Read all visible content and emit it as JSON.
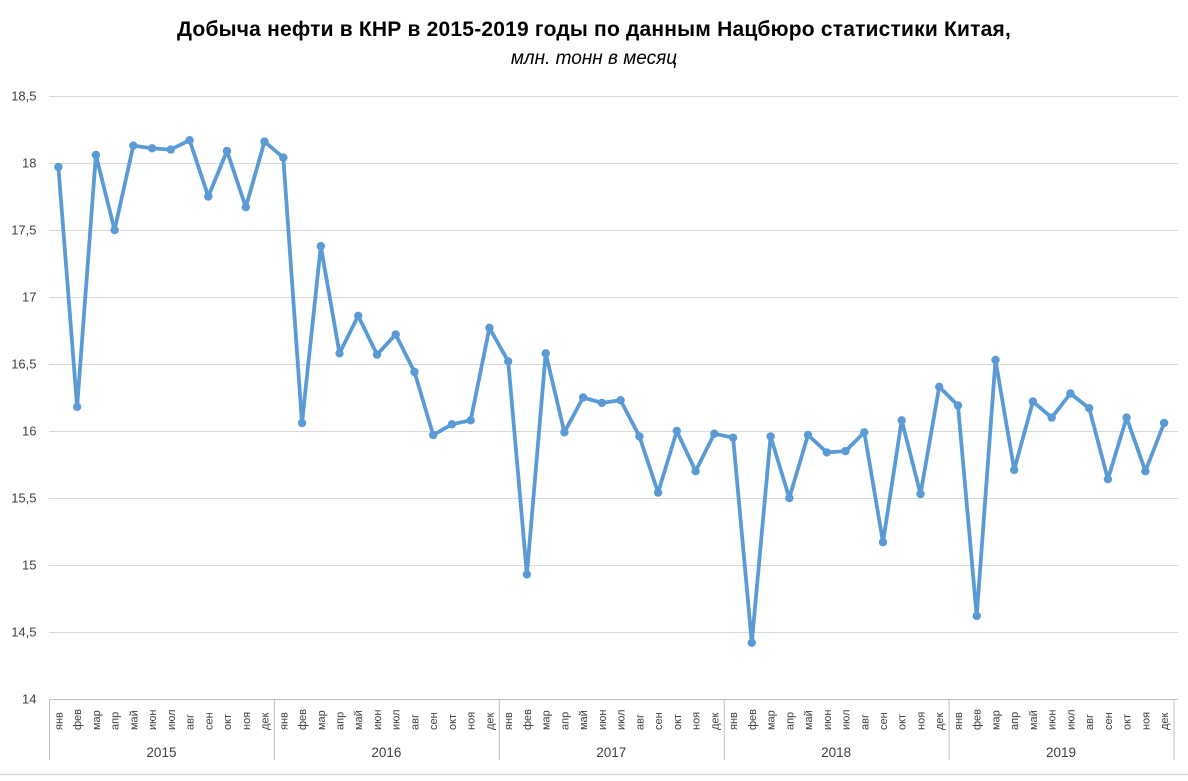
{
  "title": {
    "line1": "Добыча нефти в КНР в 2015-2019 годы по данным Нацбюро статистики Китая,",
    "line2": "млн. тонн в месяц"
  },
  "chart_data": {
    "type": "line",
    "title": "Добыча нефти в КНР в 2015-2019 годы по данным Нацбюро статистики Китая,",
    "subtitle": "млн. тонн в месяц",
    "xlabel": "",
    "ylabel": "",
    "ylim": [
      14,
      18.5
    ],
    "ytick_step": 0.5,
    "ytick_labels": [
      "18,5",
      "18",
      "17,5",
      "17",
      "16,5",
      "16",
      "15,5",
      "15",
      "14,5",
      "14"
    ],
    "grid": true,
    "legend": "none",
    "years": [
      "2015",
      "2016",
      "2017",
      "2018",
      "2019"
    ],
    "month_labels": [
      "янв",
      "фев",
      "мар",
      "апр",
      "май",
      "июн",
      "июл",
      "авг",
      "сен",
      "окт",
      "ноя",
      "дек"
    ],
    "series": [
      {
        "values": [
          17.97,
          16.18,
          18.06,
          17.5,
          18.13,
          18.11,
          18.1,
          18.17,
          17.75,
          18.09,
          17.67,
          18.16,
          18.04,
          16.06,
          17.38,
          16.58,
          16.86,
          16.57,
          16.72,
          16.44,
          15.97,
          16.05,
          16.08,
          16.77,
          16.52,
          14.93,
          16.58,
          15.99,
          16.25,
          16.21,
          16.23,
          15.96,
          15.54,
          16.0,
          15.7,
          15.98,
          15.95,
          14.42,
          15.96,
          15.5,
          15.97,
          15.84,
          15.85,
          15.99,
          15.17,
          16.08,
          15.53,
          16.33,
          16.19,
          14.62,
          16.53,
          15.71,
          16.22,
          16.1,
          16.28,
          16.17,
          15.64,
          16.1,
          15.7,
          16.06
        ]
      }
    ],
    "colors": {
      "line": "#5B9BD5",
      "marker": "#5B9BD5",
      "gridline": "#D9D9D9",
      "axis_line": "#BFBFBF",
      "axis_text": "#404040",
      "title_text": "#000000"
    }
  }
}
